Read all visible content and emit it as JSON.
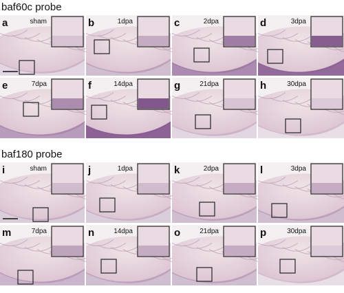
{
  "sections": [
    {
      "title": "baf60c probe",
      "panels": [
        {
          "letter": "a",
          "label": "sham"
        },
        {
          "letter": "b",
          "label": "1dpa"
        },
        {
          "letter": "c",
          "label": "2dpa"
        },
        {
          "letter": "d",
          "label": "3dpa"
        },
        {
          "letter": "e",
          "label": "7dpa"
        },
        {
          "letter": "f",
          "label": "14dpa"
        },
        {
          "letter": "g",
          "label": "21dpa"
        },
        {
          "letter": "h",
          "label": "30dpa"
        }
      ]
    },
    {
      "title": "baf180 probe",
      "panels": [
        {
          "letter": "i",
          "label": "sham"
        },
        {
          "letter": "j",
          "label": "1dpa"
        },
        {
          "letter": "k",
          "label": "2dpa"
        },
        {
          "letter": "l",
          "label": "3dpa"
        },
        {
          "letter": "m",
          "label": "7dpa"
        },
        {
          "letter": "n",
          "label": "14dpa"
        },
        {
          "letter": "o",
          "label": "21dpa"
        },
        {
          "letter": "p",
          "label": "30dpa"
        }
      ]
    }
  ]
}
